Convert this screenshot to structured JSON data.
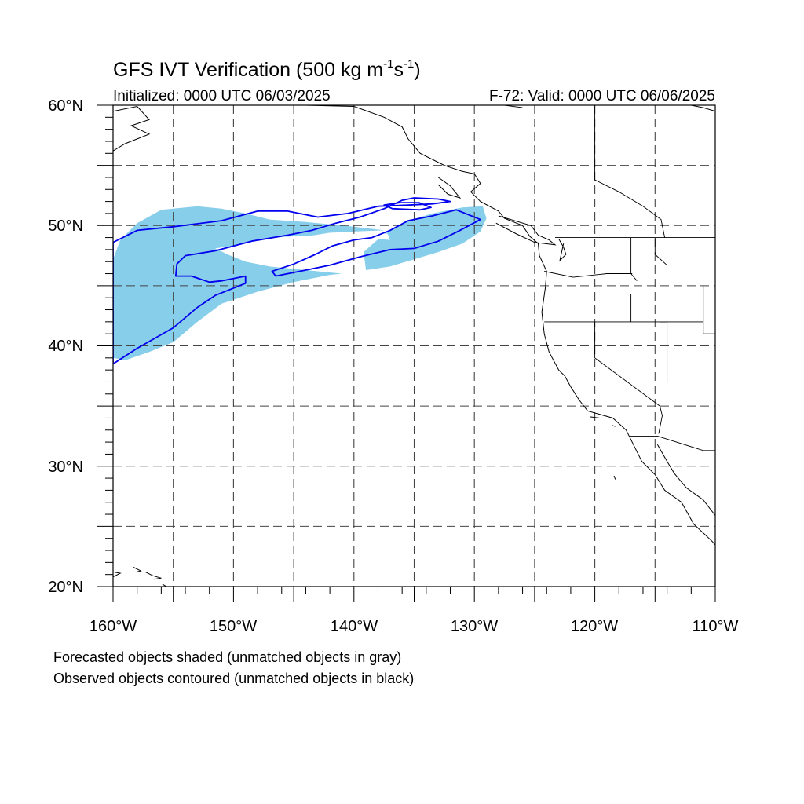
{
  "header": {
    "title_main": "GFS IVT Verification (500 kg m",
    "title_exp1": "-1",
    "title_mid": "s",
    "title_exp2": "-1",
    "title_end": ")",
    "initialized": "Initialized: 0000 UTC 06/03/2025",
    "valid": "F-72: Valid: 0000 UTC 06/06/2025"
  },
  "axes": {
    "lon_range": [
      -160,
      -110
    ],
    "lat_range": [
      20,
      60
    ],
    "lat_ticks": [
      {
        "value": 60,
        "label": "60°N"
      },
      {
        "value": 50,
        "label": "50°N"
      },
      {
        "value": 40,
        "label": "40°N"
      },
      {
        "value": 30,
        "label": "30°N"
      },
      {
        "value": 20,
        "label": "20°N"
      }
    ],
    "lon_ticks": [
      {
        "value": -160,
        "label": "160°W"
      },
      {
        "value": -150,
        "label": "150°W"
      },
      {
        "value": -140,
        "label": "140°W"
      },
      {
        "value": -130,
        "label": "130°W"
      },
      {
        "value": -120,
        "label": "120°W"
      },
      {
        "value": -110,
        "label": "110°W"
      }
    ],
    "grid_lons": [
      -155,
      -150,
      -145,
      -140,
      -135,
      -130,
      -125,
      -120,
      -115
    ],
    "grid_lats": [
      55,
      50,
      45,
      40,
      35,
      30,
      25
    ],
    "grid": true
  },
  "notes": {
    "line1": "Forecasted objects shaded (unmatched objects in gray)",
    "line2": "Observed objects contoured (unmatched objects in black)"
  },
  "colors": {
    "forecast_fill": "#87ceeb",
    "observed_contour": "#0000ee",
    "coastline": "#000000"
  },
  "objects": {
    "forecast_main": [
      [
        -160,
        39
      ],
      [
        -159,
        38.8
      ],
      [
        -157,
        39.5
      ],
      [
        -155,
        40.3
      ],
      [
        -153,
        42
      ],
      [
        -151,
        43.5
      ],
      [
        -148,
        44.5
      ],
      [
        -145,
        45.3
      ],
      [
        -142,
        45.9
      ],
      [
        -141,
        46
      ],
      [
        -144,
        46.3
      ],
      [
        -147,
        46.6
      ],
      [
        -149,
        47
      ],
      [
        -150.5,
        47.6
      ],
      [
        -151.5,
        48.1
      ],
      [
        -149.5,
        48.4
      ],
      [
        -147,
        49
      ],
      [
        -143,
        49.2
      ],
      [
        -140,
        49.5
      ],
      [
        -137.5,
        49.6
      ],
      [
        -140,
        49.9
      ],
      [
        -144,
        50.3
      ],
      [
        -147,
        50.5
      ],
      [
        -149,
        51
      ],
      [
        -151,
        51.4
      ],
      [
        -153,
        51.6
      ],
      [
        -156,
        51.3
      ],
      [
        -158,
        50.2
      ],
      [
        -159.4,
        48.8
      ],
      [
        -160,
        47.2
      ]
    ],
    "forecast_east": [
      [
        -139,
        46.3
      ],
      [
        -137,
        46.6
      ],
      [
        -135,
        47.2
      ],
      [
        -133,
        47.8
      ],
      [
        -131,
        48.5
      ],
      [
        -129.5,
        49.5
      ],
      [
        -129,
        50.6
      ],
      [
        -129.3,
        51.6
      ],
      [
        -131,
        51.5
      ],
      [
        -133.5,
        51
      ],
      [
        -135.5,
        50.4
      ],
      [
        -137.5,
        49.3
      ],
      [
        -139.2,
        47.8
      ]
    ],
    "forecast_hole": [
      [
        -137,
        48.8
      ],
      [
        -139,
        49
      ],
      [
        -141,
        48.8
      ],
      [
        -143,
        48.3
      ],
      [
        -145,
        48.4
      ],
      [
        -144.5,
        49
      ],
      [
        -142,
        49.4
      ],
      [
        -139,
        49.5
      ],
      [
        -137.2,
        49.3
      ]
    ],
    "observed_contours": [
      [
        [
          -160,
          38.5
        ],
        [
          -158,
          39.8
        ],
        [
          -155,
          41.5
        ],
        [
          -153,
          43.2
        ],
        [
          -151.5,
          44.2
        ],
        [
          -150,
          44.8
        ],
        [
          -149,
          45.2
        ],
        [
          -149,
          45.8
        ],
        [
          -151,
          45.4
        ],
        [
          -152,
          45.3
        ],
        [
          -153.5,
          45.8
        ],
        [
          -154.8,
          45.8
        ],
        [
          -154.7,
          46.8
        ],
        [
          -154,
          47.5
        ],
        [
          -151.5,
          47.9
        ],
        [
          -148.5,
          48.7
        ],
        [
          -145.5,
          49.2
        ],
        [
          -143.5,
          49.6
        ],
        [
          -141.5,
          50.2
        ],
        [
          -139.5,
          50.7
        ],
        [
          -137.5,
          51.4
        ],
        [
          -136,
          52.1
        ],
        [
          -135,
          52.3
        ],
        [
          -133,
          52.2
        ],
        [
          -132,
          52
        ],
        [
          -133.5,
          51.8
        ],
        [
          -135.5,
          51.7
        ],
        [
          -138,
          51.6
        ],
        [
          -140.5,
          51
        ],
        [
          -143,
          50.7
        ],
        [
          -145.5,
          51.2
        ],
        [
          -148,
          51.2
        ],
        [
          -151,
          50.4
        ],
        [
          -155,
          49.9
        ],
        [
          -158,
          49.6
        ],
        [
          -160,
          48.6
        ]
      ],
      [
        [
          -146.5,
          45.8
        ],
        [
          -144.5,
          46.2
        ],
        [
          -142,
          46.7
        ],
        [
          -139.5,
          47.4
        ],
        [
          -137,
          48
        ],
        [
          -135,
          48.1
        ],
        [
          -133,
          48.7
        ],
        [
          -131.2,
          49.6
        ],
        [
          -129.5,
          50.5
        ],
        [
          -131.5,
          51.3
        ],
        [
          -133.5,
          50.8
        ],
        [
          -135.5,
          50.4
        ],
        [
          -137,
          49.6
        ],
        [
          -138.5,
          49
        ],
        [
          -140,
          48.8
        ],
        [
          -141.8,
          48.3
        ],
        [
          -143.2,
          47.6
        ],
        [
          -145,
          46.8
        ],
        [
          -146.8,
          46.2
        ]
      ],
      [
        [
          -137.5,
          51.7
        ],
        [
          -136.8,
          51.4
        ],
        [
          -134.5,
          51.3
        ],
        [
          -133.6,
          51.5
        ],
        [
          -134.6,
          51.9
        ],
        [
          -136.2,
          51.9
        ]
      ]
    ]
  },
  "geo": {
    "coasts": [
      [
        [
          -160,
          59.5
        ],
        [
          -158,
          59.9
        ],
        [
          -157,
          58.8
        ],
        [
          -158.5,
          58.3
        ],
        [
          -157,
          57.6
        ],
        [
          -159,
          56.8
        ],
        [
          -160,
          56.2
        ]
      ],
      [
        [
          -144,
          60
        ],
        [
          -140,
          59.9
        ],
        [
          -137.5,
          59
        ],
        [
          -136,
          58.2
        ],
        [
          -135.5,
          57.2
        ],
        [
          -134.5,
          56
        ],
        [
          -132.5,
          55
        ],
        [
          -131,
          54.5
        ],
        [
          -130,
          54.3
        ],
        [
          -129.5,
          53.5
        ],
        [
          -130.3,
          52.8
        ],
        [
          -129.5,
          52
        ],
        [
          -128,
          51.2
        ],
        [
          -127.5,
          50.6
        ],
        [
          -126,
          50
        ],
        [
          -125.4,
          49.1
        ],
        [
          -124.7,
          48.5
        ],
        [
          -124.6,
          47.5
        ],
        [
          -124,
          46.2
        ],
        [
          -124.1,
          44.9
        ],
        [
          -124.4,
          42.8
        ],
        [
          -124.2,
          41
        ],
        [
          -123.8,
          39.5
        ],
        [
          -123,
          38
        ],
        [
          -122.5,
          37.5
        ],
        [
          -122,
          36.6
        ],
        [
          -121.3,
          35.5
        ],
        [
          -120.6,
          34.6
        ],
        [
          -118.5,
          34
        ],
        [
          -117.4,
          33
        ],
        [
          -116.8,
          31.8
        ],
        [
          -116.1,
          30.4
        ],
        [
          -115,
          29.3
        ],
        [
          -114.2,
          28
        ],
        [
          -112.8,
          27
        ],
        [
          -111.8,
          25.2
        ],
        [
          -110.3,
          23.8
        ],
        [
          -109.6,
          23
        ]
      ],
      [
        [
          -114.8,
          31.8
        ],
        [
          -114,
          30.4
        ],
        [
          -113.4,
          29.4
        ],
        [
          -112.4,
          28.2
        ],
        [
          -111,
          27.2
        ],
        [
          -110,
          25.9
        ]
      ],
      [
        [
          -123,
          48.9
        ],
        [
          -122.6,
          48.2
        ],
        [
          -122.4,
          47.6
        ],
        [
          -122.9,
          47.1
        ],
        [
          -122.6,
          48.5
        ]
      ],
      [
        [
          -128,
          50.8
        ],
        [
          -125.3,
          50
        ],
        [
          -124.7,
          49.2
        ],
        [
          -123.8,
          48.8
        ],
        [
          -123.3,
          48.4
        ],
        [
          -125,
          48.6
        ],
        [
          -126.5,
          49.3
        ],
        [
          -128.2,
          50.2
        ]
      ],
      [
        [
          -133,
          54
        ],
        [
          -132,
          53.3
        ],
        [
          -131.2,
          52.3
        ],
        [
          -132.2,
          52.6
        ],
        [
          -133,
          53.4
        ]
      ],
      [
        [
          -160,
          20.8
        ],
        [
          -159.4,
          21.1
        ],
        [
          -159.9,
          21.2
        ]
      ],
      [
        [
          -158.3,
          21.6
        ],
        [
          -157.7,
          21.3
        ],
        [
          -158.1,
          21.2
        ]
      ],
      [
        [
          -157.3,
          21.2
        ],
        [
          -156.7,
          20.9
        ],
        [
          -156,
          20.7
        ],
        [
          -156.6,
          20.6
        ]
      ],
      [
        [
          -155.9,
          20.2
        ],
        [
          -155.1,
          19.7
        ],
        [
          -155.6,
          19.2
        ]
      ],
      [
        [
          -120.4,
          34.1
        ],
        [
          -119.6,
          34.0
        ]
      ],
      [
        [
          -118.6,
          33.4
        ],
        [
          -118.3,
          33.3
        ]
      ],
      [
        [
          -118.4,
          29.2
        ],
        [
          -118.3,
          28.9
        ]
      ],
      [
        [
          -110,
          59.5
        ],
        [
          -111,
          59.8
        ],
        [
          -112,
          60
        ]
      ]
    ],
    "borders": [
      [
        [
          -123.3,
          49
        ],
        [
          -110,
          49
        ]
      ],
      [
        [
          -117,
          49
        ],
        [
          -117,
          46
        ],
        [
          -116.5,
          45.4
        ]
      ],
      [
        [
          -124.2,
          46.2
        ],
        [
          -121.8,
          45.7
        ],
        [
          -119,
          46
        ],
        [
          -116.9,
          46
        ]
      ],
      [
        [
          -124.2,
          42
        ],
        [
          -111,
          42
        ]
      ],
      [
        [
          -117,
          44.3
        ],
        [
          -117,
          42
        ]
      ],
      [
        [
          -120,
          42
        ],
        [
          -120,
          39
        ],
        [
          -114.6,
          35
        ],
        [
          -114.4,
          34.2
        ],
        [
          -114.7,
          32.7
        ]
      ],
      [
        [
          -114.6,
          42
        ],
        [
          -114,
          42
        ],
        [
          -114,
          37
        ],
        [
          -111,
          37
        ]
      ],
      [
        [
          -111,
          45
        ],
        [
          -111,
          41
        ],
        [
          -110,
          41
        ]
      ],
      [
        [
          -117.1,
          32.5
        ],
        [
          -114.8,
          32.5
        ],
        [
          -111,
          31.3
        ],
        [
          -110,
          31.3
        ]
      ],
      [
        [
          -115,
          49
        ],
        [
          -115,
          47.6
        ],
        [
          -114,
          46.7
        ]
      ],
      [
        [
          -120,
          60
        ],
        [
          -120,
          53.8
        ],
        [
          -118,
          52.8
        ],
        [
          -116,
          51.6
        ],
        [
          -114.5,
          50.5
        ],
        [
          -114.2,
          49
        ]
      ],
      [
        [
          -127.5,
          60
        ],
        [
          -126,
          59.8
        ]
      ]
    ]
  }
}
